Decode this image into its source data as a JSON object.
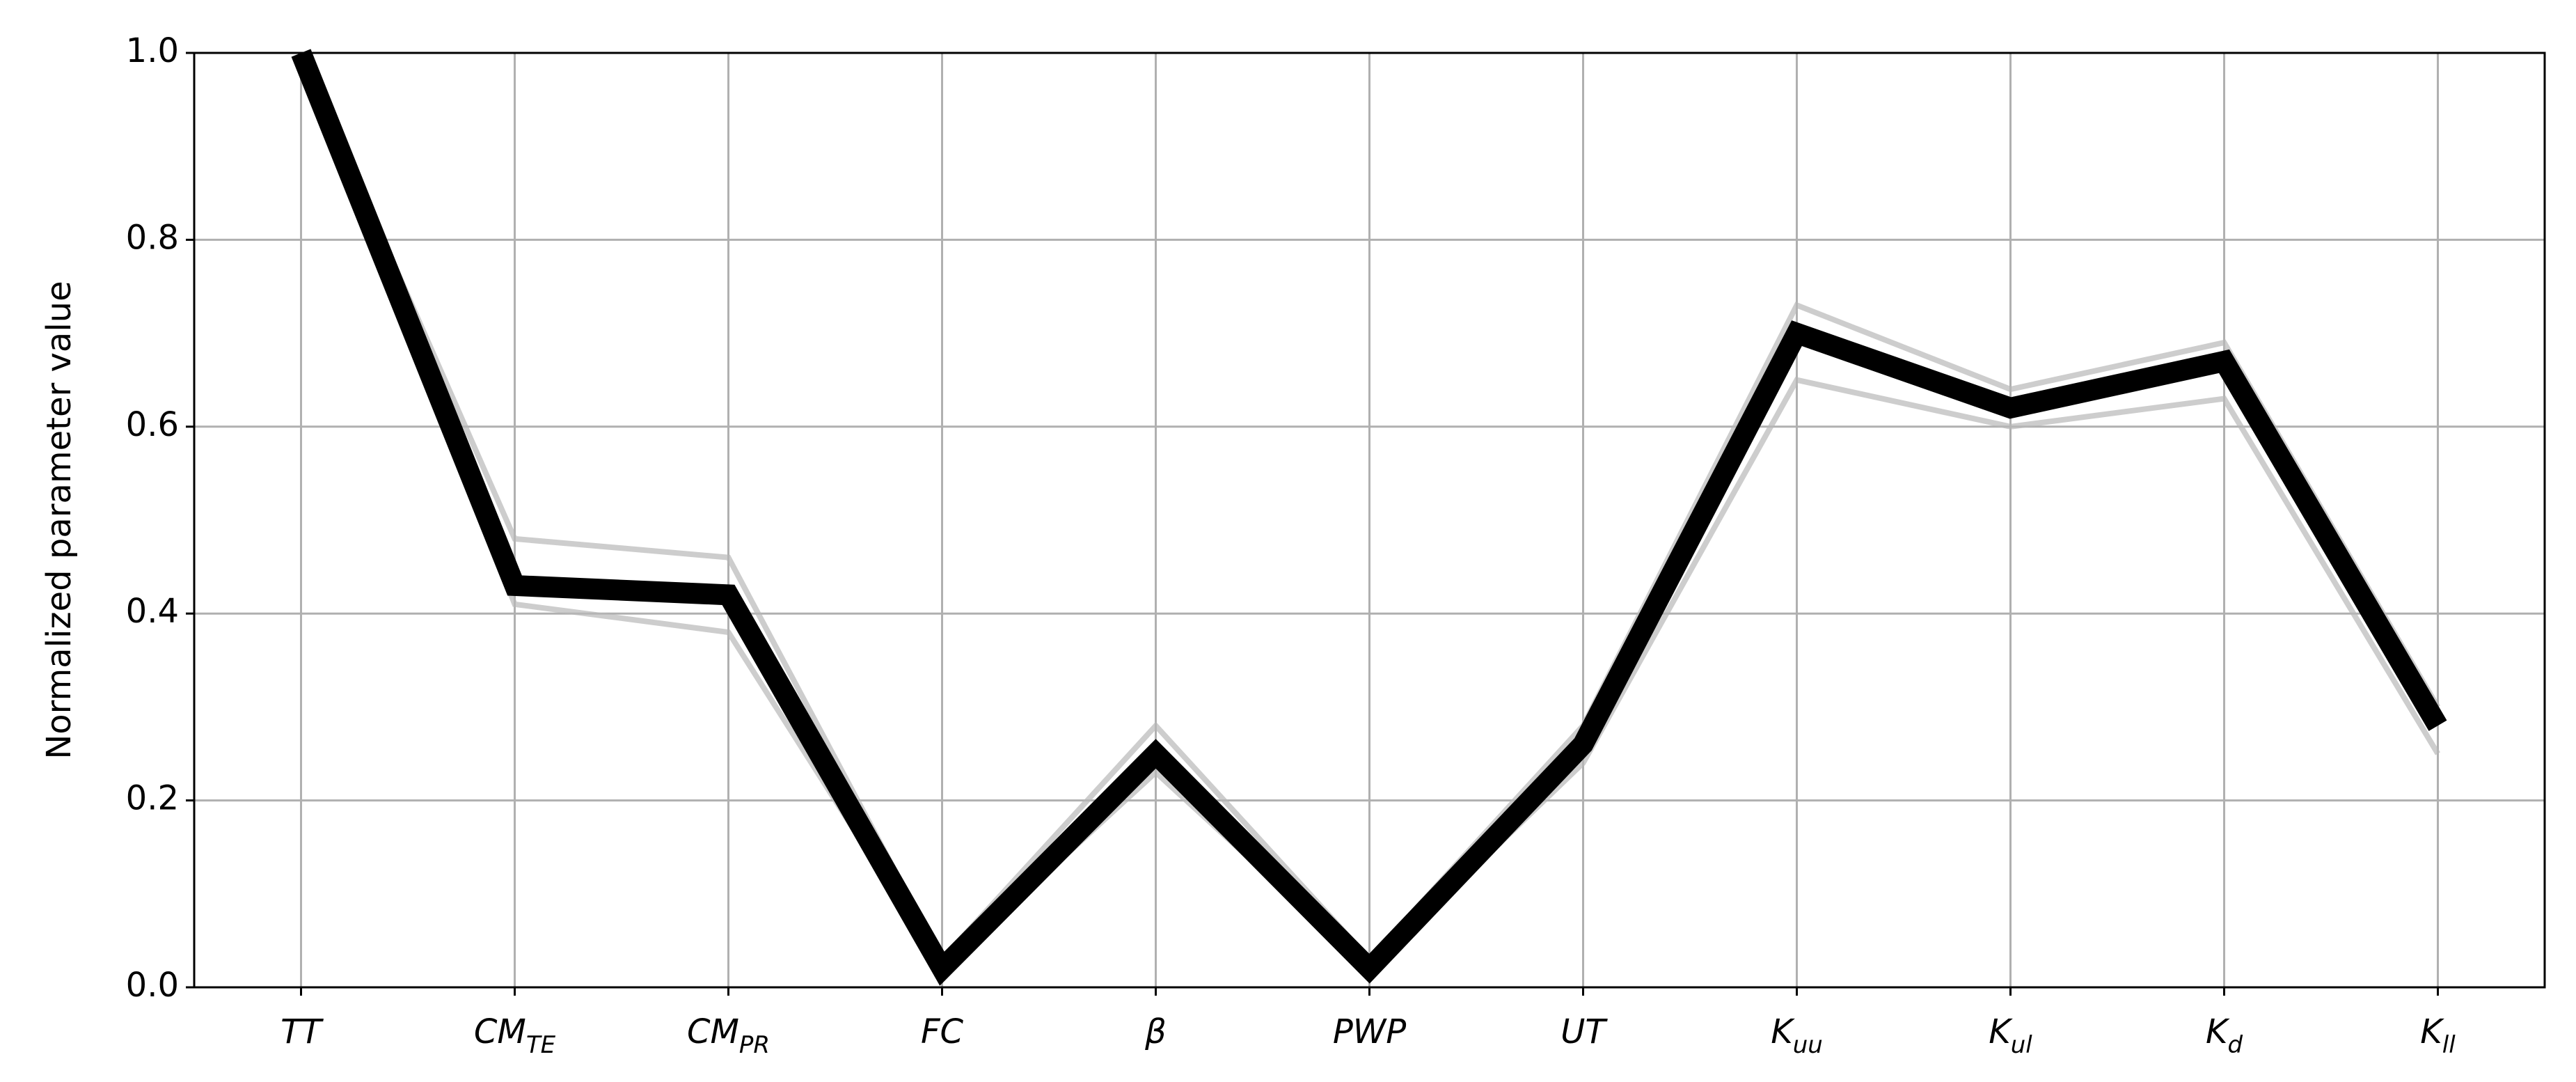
{
  "chart_data": {
    "type": "line",
    "y_label": "Normalized parameter value",
    "categories": [
      {
        "base": "TT",
        "sub": null
      },
      {
        "base": "CM",
        "sub": "TE"
      },
      {
        "base": "CM",
        "sub": "PR"
      },
      {
        "base": "FC",
        "sub": null
      },
      {
        "base": "β",
        "sub": null
      },
      {
        "base": "PWP",
        "sub": null
      },
      {
        "base": "UT",
        "sub": null
      },
      {
        "base": "K",
        "sub": "uu"
      },
      {
        "base": "K",
        "sub": "ul"
      },
      {
        "base": "K",
        "sub": "d"
      },
      {
        "base": "K",
        "sub": "ll"
      }
    ],
    "series": [
      {
        "color": "#b8b8b8",
        "values": [
          0.98,
          0.41,
          0.38,
          0.02,
          0.23,
          0.02,
          0.24,
          0.65,
          0.6,
          0.63,
          0.25
        ]
      },
      {
        "color": "#b8b8b8",
        "values": [
          1.0,
          0.48,
          0.46,
          0.03,
          0.28,
          0.03,
          0.28,
          0.73,
          0.64,
          0.69,
          0.3
        ]
      },
      {
        "color": "#000000",
        "values": [
          1.0,
          0.43,
          0.42,
          0.02,
          0.25,
          0.02,
          0.26,
          0.7,
          0.62,
          0.67,
          0.28
        ]
      }
    ],
    "ylim": [
      0,
      1
    ],
    "yticks": [
      {
        "value": 0,
        "label": "0.0"
      },
      0.2,
      0.4,
      0.6,
      0.8,
      {
        "value": 1,
        "label": "1.0"
      }
    ],
    "grid": true
  }
}
